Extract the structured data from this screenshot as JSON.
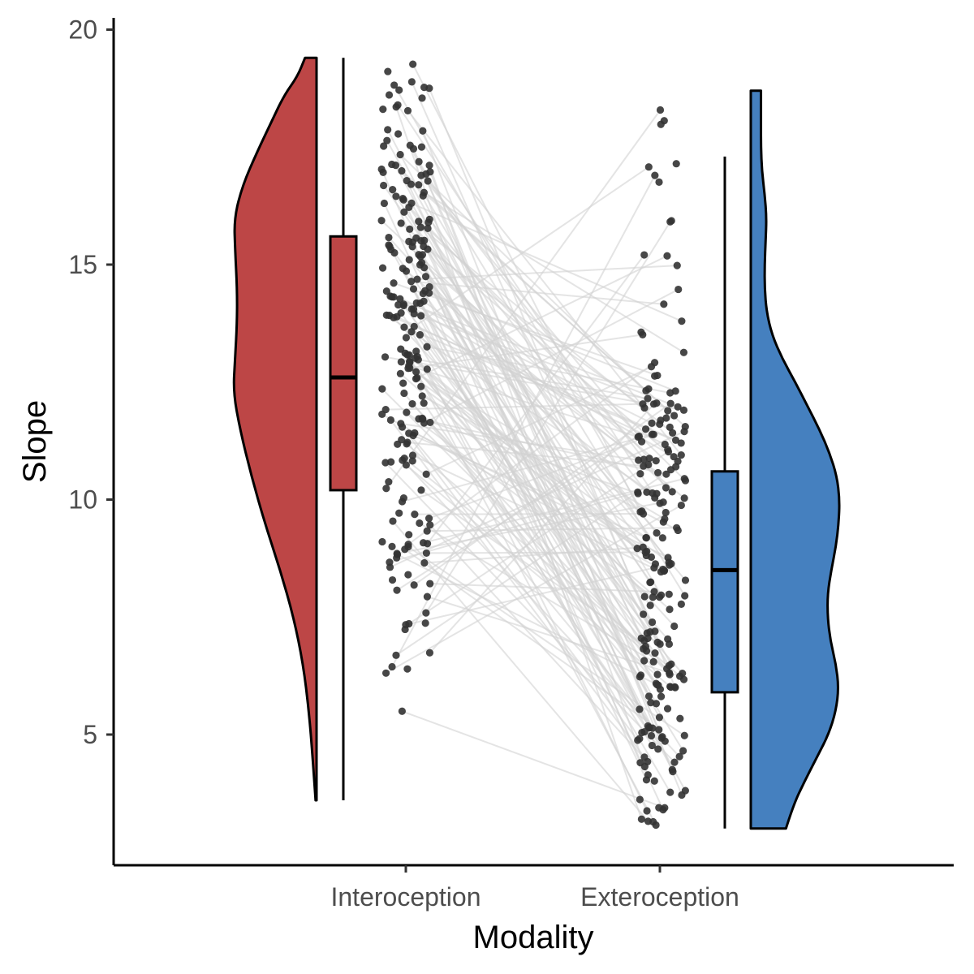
{
  "chart_data": {
    "type": "raincloud",
    "xlabel": "Modality",
    "ylabel": "Slope",
    "categories": [
      "Interoception",
      "Exteroception"
    ],
    "yticks": [
      5,
      10,
      15,
      20
    ],
    "ylim": [
      2.3,
      20.3
    ],
    "grid": false,
    "legend": "none",
    "colors": {
      "Interoception": "#bd4646",
      "Exteroception": "#4580bf",
      "points": "#333333",
      "lines": "#d2d2d2"
    },
    "box": {
      "Interoception": {
        "lower_whisker": 3.6,
        "q1": 10.2,
        "median": 12.6,
        "q3": 15.6,
        "upper_whisker": 19.4
      },
      "Exteroception": {
        "lower_whisker": 3.0,
        "q1": 5.9,
        "median": 8.5,
        "q3": 10.6,
        "upper_whisker": 17.3
      }
    },
    "density": {
      "Interoception": {
        "y": [
          3.6,
          4.5,
          5.5,
          6.5,
          7.5,
          8.5,
          9.5,
          10.5,
          11.5,
          12.3,
          13.0,
          13.8,
          14.5,
          15.3,
          16.0,
          16.7,
          17.4,
          18.0,
          18.6,
          19.0,
          19.4
        ],
        "width": [
          0.01,
          0.04,
          0.08,
          0.14,
          0.24,
          0.38,
          0.54,
          0.68,
          0.8,
          0.87,
          0.85,
          0.83,
          0.83,
          0.85,
          0.86,
          0.77,
          0.62,
          0.48,
          0.34,
          0.2,
          0.12
        ]
      },
      "Exteroception": {
        "y": [
          3.0,
          3.5,
          4.0,
          4.5,
          5.0,
          5.5,
          6.0,
          6.5,
          7.0,
          7.5,
          8.0,
          8.5,
          9.0,
          9.5,
          10.0,
          10.5,
          11.0,
          11.5,
          12.0,
          12.5,
          13.0,
          13.5,
          14.0,
          14.5,
          15.0,
          15.5,
          16.0,
          16.5,
          17.0,
          17.5,
          18.0,
          18.5,
          18.7
        ],
        "width": [
          0.38,
          0.46,
          0.58,
          0.71,
          0.84,
          0.92,
          0.95,
          0.92,
          0.86,
          0.83,
          0.83,
          0.87,
          0.92,
          0.95,
          0.96,
          0.93,
          0.85,
          0.74,
          0.61,
          0.48,
          0.34,
          0.23,
          0.17,
          0.15,
          0.15,
          0.16,
          0.17,
          0.15,
          0.12,
          0.11,
          0.11,
          0.11,
          0.11
        ]
      }
    },
    "observations": {
      "count": 210,
      "n_lines": 160,
      "Interoception_range": [
        3.6,
        19.4
      ],
      "Exteroception_range": [
        3.0,
        18.7
      ]
    }
  }
}
